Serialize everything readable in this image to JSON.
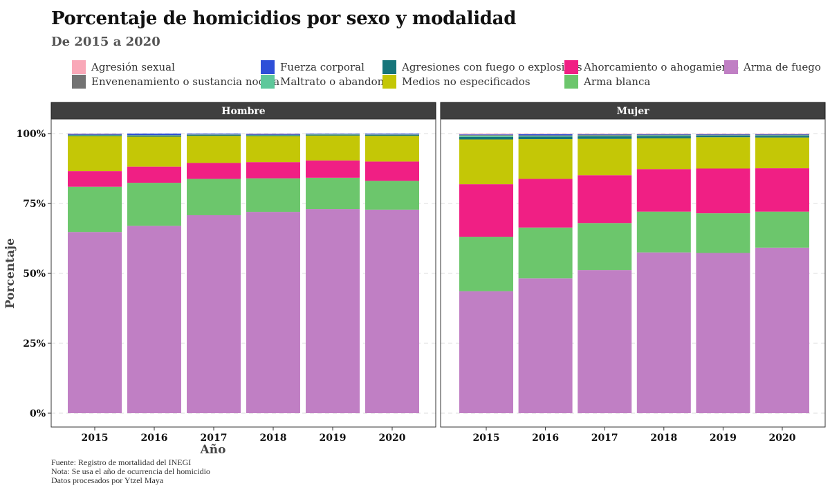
{
  "chart_data": {
    "type": "bar",
    "stacked": true,
    "title": "Porcentaje de homicidios por sexo y modalidad",
    "subtitle": "De 2015 a 2020",
    "xlabel": "Año",
    "ylabel": "Porcentaje",
    "ylim": [
      0,
      100
    ],
    "y_ticks": [
      0,
      25,
      50,
      75,
      100
    ],
    "y_tick_labels": [
      "0%",
      "25%",
      "50%",
      "75%",
      "100%"
    ],
    "grid": true,
    "legend_position": "top",
    "categories": [
      "2015",
      "2016",
      "2017",
      "2018",
      "2019",
      "2020"
    ],
    "legend": [
      {
        "key": "agresion",
        "label": "Agresión sexual",
        "color": "#f9a8b8"
      },
      {
        "key": "fuerza",
        "label": "Fuerza corporal",
        "color": "#2e4fd8"
      },
      {
        "key": "fuego_exp",
        "label": "Agresiones con fuego o explosivos",
        "color": "#16757a"
      },
      {
        "key": "ahorc",
        "label": "Ahorcamiento o ahogamiento",
        "color": "#f01f84"
      },
      {
        "key": "arma_fuego",
        "label": "Arma de fuego",
        "color": "#c07fc4"
      },
      {
        "key": "envenen",
        "label": "Envenenamiento o sustancia nociva",
        "color": "#737373"
      },
      {
        "key": "maltrato",
        "label": "Maltrato o abandono",
        "color": "#5ec89b"
      },
      {
        "key": "medios",
        "label": "Medios no especificados",
        "color": "#c4c706"
      },
      {
        "key": "arma_blanca",
        "label": "Arma blanca",
        "color": "#6cc66c"
      }
    ],
    "stack_order": [
      "arma_fuego",
      "arma_blanca",
      "ahorc",
      "medios",
      "fuego_exp",
      "maltrato",
      "envenen",
      "fuerza",
      "agresion"
    ],
    "panels": [
      {
        "name": "Hombre",
        "series": {
          "arma_fuego": [
            64.8,
            67.0,
            70.8,
            72.0,
            73.0,
            72.8
          ],
          "arma_blanca": [
            16.2,
            15.4,
            13.0,
            12.0,
            11.2,
            10.3
          ],
          "ahorc": [
            5.6,
            5.8,
            5.7,
            5.8,
            6.2,
            6.9
          ],
          "medios": [
            12.5,
            10.7,
            9.7,
            9.3,
            8.9,
            9.2
          ],
          "fuego_exp": [
            0.3,
            0.4,
            0.3,
            0.3,
            0.3,
            0.3
          ],
          "maltrato": [
            0.1,
            0.1,
            0.1,
            0.1,
            0.1,
            0.1
          ],
          "envenen": [
            0.1,
            0.1,
            0.1,
            0.1,
            0.1,
            0.1
          ],
          "fuerza": [
            0.3,
            0.5,
            0.3,
            0.3,
            0.2,
            0.3
          ],
          "agresion": [
            0.1,
            0.0,
            0.0,
            0.1,
            0.0,
            0.0
          ]
        }
      },
      {
        "name": "Mujer",
        "series": {
          "arma_fuego": [
            43.6,
            48.2,
            51.2,
            57.5,
            57.3,
            59.2
          ],
          "arma_blanca": [
            19.5,
            18.2,
            16.8,
            14.6,
            14.2,
            12.9
          ],
          "ahorc": [
            18.8,
            17.4,
            17.1,
            15.2,
            16.0,
            15.5
          ],
          "medios": [
            16.0,
            14.2,
            13.0,
            11.0,
            11.2,
            11.0
          ],
          "fuego_exp": [
            0.9,
            0.9,
            0.9,
            0.8,
            0.6,
            0.6
          ],
          "maltrato": [
            0.5,
            0.3,
            0.3,
            0.3,
            0.1,
            0.2
          ],
          "envenen": [
            0.2,
            0.2,
            0.3,
            0.2,
            0.2,
            0.2
          ],
          "fuerza": [
            0.2,
            0.4,
            0.2,
            0.2,
            0.2,
            0.2
          ],
          "agresion": [
            0.3,
            0.2,
            0.2,
            0.2,
            0.2,
            0.2
          ]
        }
      }
    ]
  },
  "footer": {
    "line1": "Fuente: Registro de mortalidad del INEGI",
    "line2": "Nota: Se usa el año de ocurrencia del homicidio",
    "line3": "Datos procesados por Ytzel Maya"
  }
}
